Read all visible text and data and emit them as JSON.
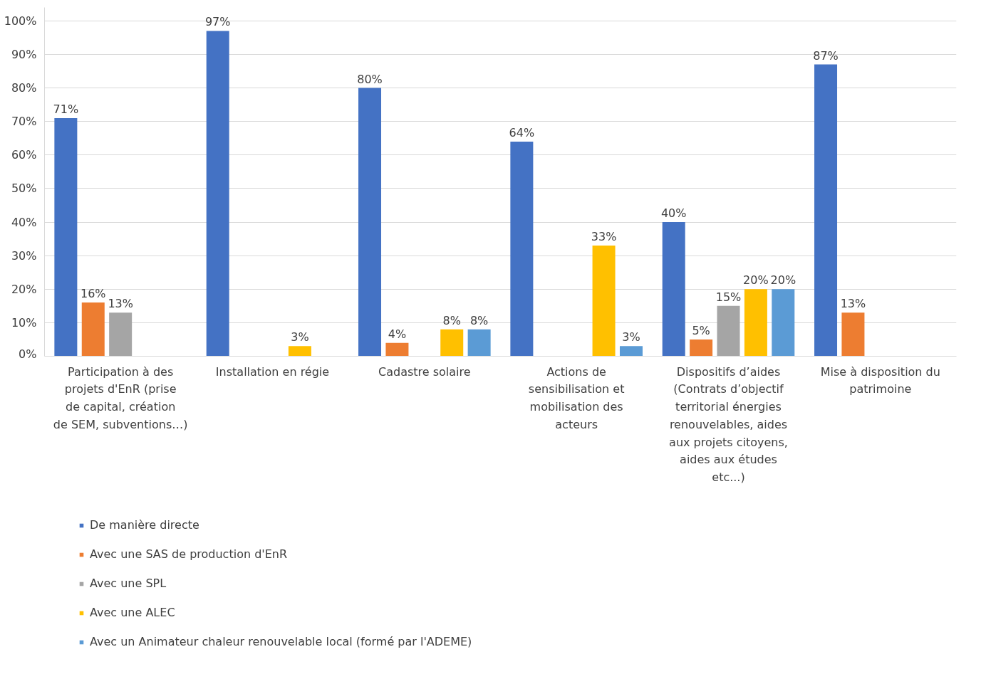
{
  "chart_data": {
    "type": "bar",
    "categories": [
      "Participation à des projets d'EnR (prise de capital, création de SEM, subventions…)",
      "Installation en régie",
      "Cadastre solaire",
      "Actions de sensibilisation et mobilisation des acteurs",
      "Dispositifs d’aides (Contrats d’objectif territorial énergies renouvelables, aides aux projets citoyens, aides aux études etc...)",
      "Mise à disposition du patrimoine"
    ],
    "series": [
      {
        "name": "De manière directe",
        "color": "#4472c4",
        "values": [
          71,
          97,
          80,
          64,
          40,
          87
        ],
        "value_labels": [
          "71%",
          "97%",
          "80%",
          "64%",
          "40%",
          "87%"
        ]
      },
      {
        "name": "Avec une SAS de production d'EnR",
        "color": "#ed7d31",
        "values": [
          16,
          null,
          4,
          null,
          5,
          13
        ],
        "value_labels": [
          "16%",
          null,
          "4%",
          null,
          "5%",
          "13%"
        ]
      },
      {
        "name": "Avec une SPL",
        "color": "#a5a5a5",
        "values": [
          13,
          null,
          null,
          null,
          15,
          null
        ],
        "value_labels": [
          "13%",
          null,
          null,
          null,
          "15%",
          null
        ]
      },
      {
        "name": "Avec une ALEC",
        "color": "#ffc000",
        "values": [
          null,
          3,
          8,
          33,
          20,
          null
        ],
        "value_labels": [
          null,
          "3%",
          "8%",
          "33%",
          "20%",
          null
        ]
      },
      {
        "name": "Avec un Animateur chaleur renouvelable local (formé par l'ADEME)",
        "color": "#5b9bd5",
        "values": [
          null,
          null,
          8,
          3,
          20,
          null
        ],
        "value_labels": [
          null,
          null,
          "8%",
          "3%",
          "20%",
          null
        ]
      }
    ],
    "ylim": [
      0,
      104
    ],
    "yticks": [
      {
        "value": 0,
        "label": "0%"
      },
      {
        "value": 10,
        "label": "10%"
      },
      {
        "value": 20,
        "label": "20%"
      },
      {
        "value": 30,
        "label": "30%"
      },
      {
        "value": 40,
        "label": "40%"
      },
      {
        "value": 50,
        "label": "50%"
      },
      {
        "value": 60,
        "label": "60%"
      },
      {
        "value": 70,
        "label": "70%"
      },
      {
        "value": 80,
        "label": "80%"
      },
      {
        "value": 90,
        "label": "90%"
      },
      {
        "value": 100,
        "label": "100%"
      }
    ],
    "grid": "y",
    "legend": "bottom left"
  }
}
